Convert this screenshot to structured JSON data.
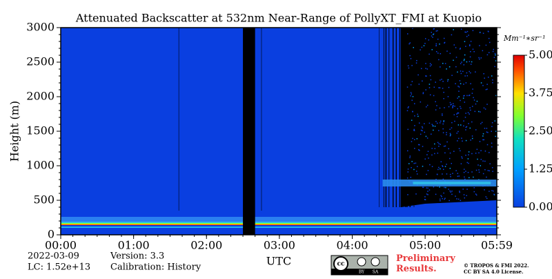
{
  "chart_data": {
    "type": "heatmap",
    "title": "Attenuated Backscatter at 532nm Near-Range of PollyXT_FMI at Kuopio",
    "xlabel": "UTC",
    "ylabel": "Height (m)",
    "xlim": [
      0,
      359
    ],
    "ylim": [
      0,
      3000
    ],
    "xticks": [
      {
        "value": 0,
        "label": "00:00"
      },
      {
        "value": 60,
        "label": "01:00"
      },
      {
        "value": 120,
        "label": "02:00"
      },
      {
        "value": 180,
        "label": "03:00"
      },
      {
        "value": 240,
        "label": "04:00"
      },
      {
        "value": 300,
        "label": "05:00"
      },
      {
        "value": 359,
        "label": "05:59"
      }
    ],
    "yticks": [
      0,
      500,
      1000,
      1500,
      2000,
      2500,
      3000
    ],
    "no_data": [
      [
        150,
        160
      ]
    ],
    "colorbar_label": "Mm⁻¹∗sr⁻¹",
    "clim": [
      0,
      5
    ],
    "cticks": [
      {
        "value": 0,
        "label": "0.00"
      },
      {
        "value": 1.25,
        "label": "1.25"
      },
      {
        "value": 2.5,
        "label": "2.50"
      },
      {
        "value": 3.75,
        "label": "3.75"
      },
      {
        "value": 5,
        "label": "5.00"
      }
    ]
  },
  "footer": {
    "date": "2022-03-09",
    "version": "Version: 3.3",
    "lc": "LC: 1.52e+13",
    "calibration": "Calibration: History",
    "license_by": "BY",
    "license_sa": "SA",
    "preliminary": "Preliminary Results.",
    "copyright": "© TROPOS & FMI 2022.",
    "license": "CC BY SA 4.0 License."
  }
}
